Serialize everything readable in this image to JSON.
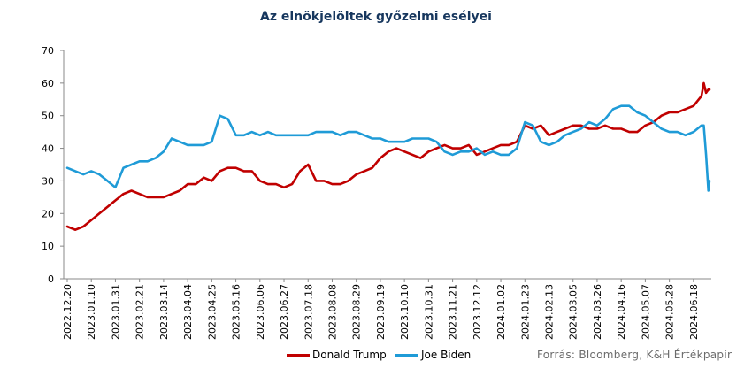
{
  "chart_data": {
    "type": "line",
    "title": "Az elnökjelöltek győzelmi esélyei",
    "xlabel": "",
    "ylabel": "",
    "ylim": [
      0,
      70
    ],
    "yticks": [
      0,
      10,
      20,
      30,
      40,
      50,
      60,
      70
    ],
    "grid": false,
    "legend": "bottom",
    "x_tick_labels": [
      "2022.12.20",
      "2023.01.10",
      "2023.01.31",
      "2023.02.21",
      "2023.03.14",
      "2023.04.04",
      "2023.04.25",
      "2023.05.16",
      "2023.06.06",
      "2023.06.27",
      "2023.07.18",
      "2023.08.08",
      "2023.08.29",
      "2023.09.19",
      "2023.10.10",
      "2023.10.31",
      "2023.11.21",
      "2023.12.12",
      "2024.01.02",
      "2024.01.23",
      "2024.02.13",
      "2024.03.05",
      "2024.03.26",
      "2024.04.16",
      "2024.05.07",
      "2024.05.28",
      "2024.06.18"
    ],
    "x": [
      "2022.12.20",
      "2022.12.27",
      "2023.01.03",
      "2023.01.10",
      "2023.01.17",
      "2023.01.24",
      "2023.01.31",
      "2023.02.07",
      "2023.02.14",
      "2023.02.21",
      "2023.02.28",
      "2023.03.07",
      "2023.03.14",
      "2023.03.21",
      "2023.03.28",
      "2023.04.04",
      "2023.04.11",
      "2023.04.18",
      "2023.04.25",
      "2023.05.02",
      "2023.05.09",
      "2023.05.16",
      "2023.05.23",
      "2023.05.30",
      "2023.06.06",
      "2023.06.13",
      "2023.06.20",
      "2023.06.27",
      "2023.07.04",
      "2023.07.11",
      "2023.07.18",
      "2023.07.25",
      "2023.08.01",
      "2023.08.08",
      "2023.08.15",
      "2023.08.22",
      "2023.08.29",
      "2023.09.05",
      "2023.09.12",
      "2023.09.19",
      "2023.09.26",
      "2023.10.03",
      "2023.10.10",
      "2023.10.17",
      "2023.10.24",
      "2023.10.31",
      "2023.11.07",
      "2023.11.14",
      "2023.11.21",
      "2023.11.28",
      "2023.12.05",
      "2023.12.12",
      "2023.12.19",
      "2023.12.26",
      "2024.01.02",
      "2024.01.09",
      "2024.01.16",
      "2024.01.23",
      "2024.01.30",
      "2024.02.06",
      "2024.02.13",
      "2024.02.20",
      "2024.02.27",
      "2024.03.05",
      "2024.03.12",
      "2024.03.19",
      "2024.03.26",
      "2024.04.02",
      "2024.04.09",
      "2024.04.16",
      "2024.04.23",
      "2024.04.30",
      "2024.05.07",
      "2024.05.14",
      "2024.05.21",
      "2024.05.28",
      "2024.06.04",
      "2024.06.11",
      "2024.06.18",
      "2024.06.25",
      "2024.06.27",
      "2024.06.29",
      "2024.07.01",
      "2024.07.02"
    ],
    "series": [
      {
        "name": "Donald Trump",
        "color": "#c00000",
        "values": [
          16,
          15,
          16,
          18,
          20,
          22,
          24,
          26,
          27,
          26,
          25,
          25,
          25,
          26,
          27,
          29,
          29,
          31,
          30,
          33,
          34,
          34,
          33,
          33,
          30,
          29,
          29,
          28,
          29,
          33,
          35,
          30,
          30,
          29,
          29,
          30,
          32,
          33,
          34,
          37,
          39,
          40,
          39,
          38,
          37,
          39,
          40,
          41,
          40,
          40,
          41,
          38,
          39,
          40,
          41,
          41,
          42,
          47,
          46,
          47,
          44,
          45,
          46,
          47,
          47,
          46,
          46,
          47,
          46,
          46,
          45,
          45,
          47,
          48,
          50,
          51,
          51,
          52,
          53,
          56,
          60,
          57,
          58,
          58
        ]
      },
      {
        "name": "Joe Biden",
        "color": "#1f9bd7",
        "values": [
          34,
          33,
          32,
          33,
          32,
          30,
          28,
          34,
          35,
          36,
          36,
          37,
          39,
          43,
          42,
          41,
          41,
          41,
          42,
          50,
          49,
          44,
          44,
          45,
          44,
          45,
          44,
          44,
          44,
          44,
          44,
          45,
          45,
          45,
          44,
          45,
          45,
          44,
          43,
          43,
          42,
          42,
          42,
          43,
          43,
          43,
          42,
          39,
          38,
          39,
          39,
          40,
          38,
          39,
          38,
          38,
          40,
          48,
          47,
          42,
          41,
          42,
          44,
          45,
          46,
          48,
          47,
          49,
          52,
          53,
          53,
          51,
          50,
          48,
          46,
          45,
          45,
          44,
          45,
          47,
          47,
          38,
          27,
          30
        ]
      }
    ]
  },
  "legend": {
    "items": [
      {
        "label": "Donald Trump",
        "color": "#c00000"
      },
      {
        "label": "Joe Biden",
        "color": "#1f9bd7"
      }
    ]
  },
  "source": "Forrás: Bloomberg, K&H Értékpapír"
}
